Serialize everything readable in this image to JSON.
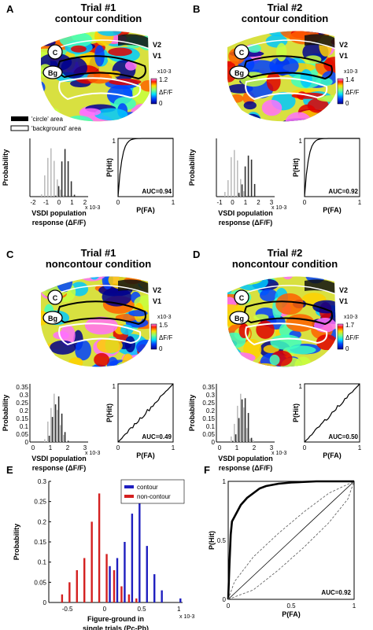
{
  "figure": {
    "panels": [
      {
        "letter": "A",
        "title_line1": "Trial #1",
        "title_line2": "contour condition",
        "map_labels": {
          "v2": "V2",
          "v1": "V1",
          "c": "C",
          "bg": "Bg"
        },
        "colorbar": {
          "max": "1.2",
          "exp": "x10-3",
          "mid": "ΔF/F",
          "min": "0"
        },
        "hist_ylabel": "Probability",
        "hist_xticks": [
          "-2",
          "-1",
          "0",
          "1",
          "2"
        ],
        "hist_xexp": "x 10-3",
        "hist_xlabel1": "VSDI population",
        "hist_xlabel2": "response (ΔF/F)",
        "roc_ylabel": "P(Hit)",
        "roc_xlabel": "P(FA)",
        "roc_auc": "AUC=0.94",
        "roc_ticks": {
          "y1": "1",
          "x0": "0",
          "x1": "1"
        }
      },
      {
        "letter": "B",
        "title_line1": "Trial #2",
        "title_line2": "contour condition",
        "map_labels": {
          "v2": "V2",
          "v1": "V1",
          "c": "C",
          "bg": "Bg"
        },
        "colorbar": {
          "max": "1.4",
          "exp": "x10-3",
          "mid": "ΔF/F",
          "min": "0"
        },
        "hist_ylabel": "Probability",
        "hist_xticks": [
          "-1",
          "0",
          "1",
          "2",
          "3"
        ],
        "hist_xexp": "x 10-3",
        "hist_xlabel1": "VSDI population",
        "hist_xlabel2": "response (ΔF/F)",
        "roc_ylabel": "P(Hit)",
        "roc_xlabel": "P(FA)",
        "roc_auc": "AUC=0.92",
        "roc_ticks": {
          "y1": "1",
          "x0": "0",
          "x1": "1"
        }
      },
      {
        "letter": "C",
        "title_line1": "Trial #1",
        "title_line2": "noncontour condition",
        "map_labels": {
          "v2": "V2",
          "v1": "V1",
          "c": "C",
          "bg": "Bg"
        },
        "colorbar": {
          "max": "1.5",
          "exp": "x10-3",
          "mid": "ΔF/F",
          "min": "0"
        },
        "hist_ylabel": "Probability",
        "hist_yticks": [
          "0.35",
          "0.3",
          "0.25",
          "0.2",
          "0.15",
          "0.1",
          "0.05",
          "0"
        ],
        "hist_xticks": [
          "0",
          "1",
          "2",
          "3"
        ],
        "hist_xexp": "x 10-3",
        "hist_xlabel1": "VSDI population",
        "hist_xlabel2": "response (ΔF/F)",
        "roc_ylabel": "P(Hit)",
        "roc_xlabel": "P(FA)",
        "roc_auc": "AUC=0.49",
        "roc_ticks": {
          "y1": "1",
          "x0": "0",
          "x1": "1"
        }
      },
      {
        "letter": "D",
        "title_line1": "Trial #2",
        "title_line2": "noncontour condition",
        "map_labels": {
          "v2": "V2",
          "v1": "V1",
          "c": "C",
          "bg": "Bg"
        },
        "colorbar": {
          "max": "1.7",
          "exp": "x10-3",
          "mid": "ΔF/F",
          "min": "0"
        },
        "hist_ylabel": "Probability",
        "hist_yticks": [
          "0.35",
          "0.3",
          "0.25",
          "0.2",
          "0.15",
          "0.1",
          "0.05",
          "0"
        ],
        "hist_xticks": [
          "0",
          "1",
          "2",
          "3"
        ],
        "hist_xexp": "x 10-3",
        "hist_xlabel1": "VSDI population",
        "hist_xlabel2": "response (ΔF/F)",
        "roc_ylabel": "P(Hit)",
        "roc_xlabel": "P(FA)",
        "roc_auc": "AUC=0.50",
        "roc_ticks": {
          "y1": "1",
          "x0": "0",
          "x1": "1"
        }
      }
    ],
    "legend_ab": {
      "circle": "'circle' area",
      "background": "'background' area"
    },
    "panel_e": {
      "letter": "E",
      "ylabel": "Probability",
      "xlabel1": "Figure-ground in",
      "xlabel2": "single trials (Pc-Pb)",
      "xexp": "x 10-3",
      "legend": [
        "contour",
        "non-contour"
      ]
    },
    "panel_f": {
      "letter": "F",
      "ylabel": "P(Hit)",
      "xlabel": "P(FA)",
      "auc": "AUC=0.92"
    }
  },
  "chart_data": [
    {
      "type": "bar",
      "title": "Panel E",
      "xlabel": "Figure-ground in single trials (Pc-Pb)",
      "ylabel": "Probability",
      "x_scale_note": "x 10-3",
      "xlim": [
        -0.75,
        1.05
      ],
      "ylim": [
        0,
        0.3
      ],
      "xticks": [
        -0.5,
        0,
        0.5,
        1
      ],
      "yticks": [
        0,
        0.05,
        0.1,
        0.15,
        0.2,
        0.25,
        0.3
      ],
      "legend_position": "top-right",
      "colors": {
        "contour": "#1f1fbf",
        "non-contour": "#d42020"
      },
      "series": [
        {
          "name": "non-contour",
          "x": [
            -0.55,
            -0.45,
            -0.35,
            -0.25,
            -0.15,
            -0.05,
            0.05,
            0.15,
            0.25,
            0.35,
            0.45
          ],
          "values": [
            0.02,
            0.05,
            0.08,
            0.11,
            0.2,
            0.27,
            0.12,
            0.08,
            0.04,
            0.02,
            0.01
          ]
        },
        {
          "name": "contour",
          "x": [
            0.05,
            0.15,
            0.25,
            0.35,
            0.45,
            0.55,
            0.65,
            0.75,
            1.0
          ],
          "values": [
            0.09,
            0.11,
            0.15,
            0.22,
            0.27,
            0.14,
            0.07,
            0.03,
            0.01
          ]
        }
      ]
    },
    {
      "type": "line",
      "title": "Panel F",
      "xlabel": "P(FA)",
      "ylabel": "P(Hit)",
      "xlim": [
        0,
        1
      ],
      "ylim": [
        0,
        1
      ],
      "xticks": [
        0,
        0.5,
        1
      ],
      "yticks": [
        0,
        0.5,
        1
      ],
      "annotation": "AUC=0.92",
      "series": [
        {
          "name": "",
          "style": "solid-thick",
          "x": [
            0,
            0.01,
            0.02,
            0.03,
            0.05,
            0.08,
            0.1,
            0.15,
            0.2,
            0.25,
            0.3,
            0.4,
            0.5,
            0.7,
            0.85,
            1
          ],
          "y": [
            0,
            0.3,
            0.55,
            0.66,
            0.7,
            0.76,
            0.8,
            0.86,
            0.9,
            0.94,
            0.96,
            0.98,
            0.99,
            1,
            1,
            1
          ]
        },
        {
          "name": "",
          "style": "solid-thin",
          "x": [
            0,
            1
          ],
          "y": [
            0,
            1
          ]
        },
        {
          "name": "",
          "style": "dashed-upper",
          "x": [
            0,
            0.05,
            0.2,
            0.4,
            0.6,
            0.8,
            1
          ],
          "y": [
            0,
            0.15,
            0.36,
            0.56,
            0.74,
            0.9,
            1
          ]
        },
        {
          "name": "",
          "style": "dashed-lower",
          "x": [
            0,
            0.2,
            0.4,
            0.6,
            0.8,
            0.95,
            1
          ],
          "y": [
            0,
            0.08,
            0.25,
            0.44,
            0.65,
            0.85,
            1
          ]
        }
      ]
    }
  ]
}
